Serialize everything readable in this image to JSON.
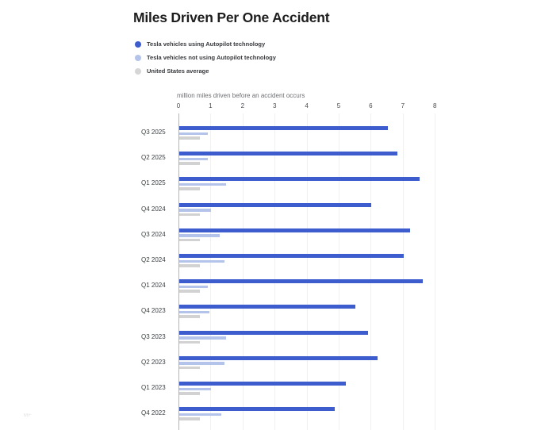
{
  "title": "Miles Driven Per One Accident",
  "legend": {
    "items": [
      {
        "label": "Tesla vehicles using Autopilot technology",
        "icon": "circle-swatch-icon",
        "color": "#3d5ccd"
      },
      {
        "label": "Tesla vehicles not using Autopilot technology",
        "icon": "circle-swatch-icon",
        "color": "#b4c3e9"
      },
      {
        "label": "United States average",
        "icon": "circle-swatch-icon",
        "color": "#d6d6d6"
      }
    ]
  },
  "watermark": "MF",
  "chart_data": {
    "type": "bar",
    "orientation": "horizontal",
    "title": "Miles Driven Per One Accident",
    "xlabel": "million miles driven before an accident occurs",
    "ylabel": "",
    "xlim": [
      0,
      8
    ],
    "xticks": [
      0,
      1,
      2,
      3,
      4,
      5,
      6,
      7,
      8
    ],
    "grid": true,
    "legend_position": "top-left",
    "categories": [
      "Q3 2025",
      "Q2 2025",
      "Q1 2025",
      "Q4 2024",
      "Q3 2024",
      "Q2 2024",
      "Q1 2024",
      "Q4 2023",
      "Q3 2023",
      "Q2 2023",
      "Q1 2023",
      "Q4 2022"
    ],
    "series": [
      {
        "name": "Tesla vehicles using Autopilot technology",
        "color": "#3d5ccd",
        "values": [
          6.5,
          6.8,
          7.5,
          6.0,
          7.2,
          7.0,
          7.6,
          5.5,
          5.9,
          6.2,
          5.2,
          4.85
        ]
      },
      {
        "name": "Tesla vehicles not using Autopilot technology",
        "color": "#b4c3e9",
        "values": [
          0.9,
          0.9,
          1.45,
          1.0,
          1.25,
          1.4,
          0.9,
          0.95,
          1.45,
          1.4,
          1.0,
          1.3
        ]
      },
      {
        "name": "United States average",
        "color": "#d2d2d2",
        "values": [
          0.65,
          0.65,
          0.65,
          0.65,
          0.65,
          0.65,
          0.65,
          0.65,
          0.65,
          0.65,
          0.65,
          0.65
        ]
      }
    ]
  }
}
